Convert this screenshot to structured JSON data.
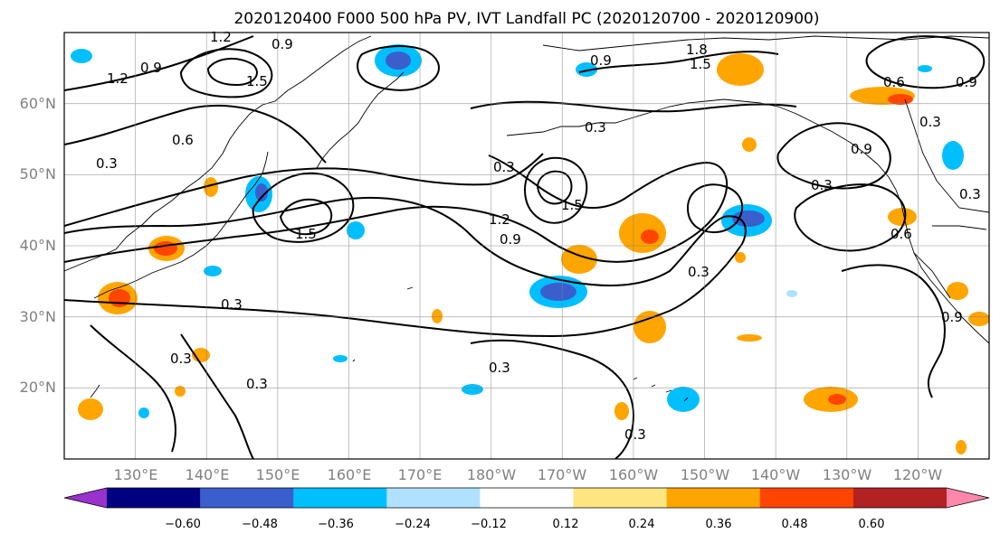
{
  "title": "2020120400 F000 500 hPa PV, IVT Landfall PC (2020120700 - 2020120900)",
  "map": {
    "lon_min": 120,
    "lon_max": 250,
    "lat_min": 10,
    "lat_max": 70,
    "lat_ticks": [
      "20°N",
      "30°N",
      "40°N",
      "50°N",
      "60°N"
    ],
    "lon_ticks": [
      "130°E",
      "140°E",
      "150°E",
      "160°E",
      "170°E",
      "180°W",
      "170°W",
      "160°W",
      "150°W",
      "140°W",
      "130°W",
      "120°W"
    ],
    "grid": true
  },
  "contour_labels": [
    "1.2",
    "0.9",
    "1.5",
    "1.2",
    "0.9",
    "0.6",
    "0.3",
    "1.5",
    "0.3",
    "0.3",
    "0.3",
    "0.3",
    "0.9",
    "1.5",
    "1.2",
    "0.9",
    "0.3",
    "0.3",
    "1.8",
    "1.5",
    "0.6",
    "0.9",
    "0.3",
    "0.9",
    "0.3",
    "0.6",
    "0.3",
    "0.3",
    "0.9",
    "0.3"
  ],
  "colorbar": {
    "ticks": [
      "−0.60",
      "−0.48",
      "−0.36",
      "−0.24",
      "−0.12",
      "0.12",
      "0.24",
      "0.36",
      "0.48",
      "0.60"
    ],
    "colors": [
      "#9932cc",
      "#000080",
      "#3a5fcd",
      "#00bfff",
      "#b0e2ff",
      "#ffffff",
      "#ffe680",
      "#ffa500",
      "#ff4500",
      "#b22222",
      "#ff88aa"
    ],
    "extend": "both"
  }
}
